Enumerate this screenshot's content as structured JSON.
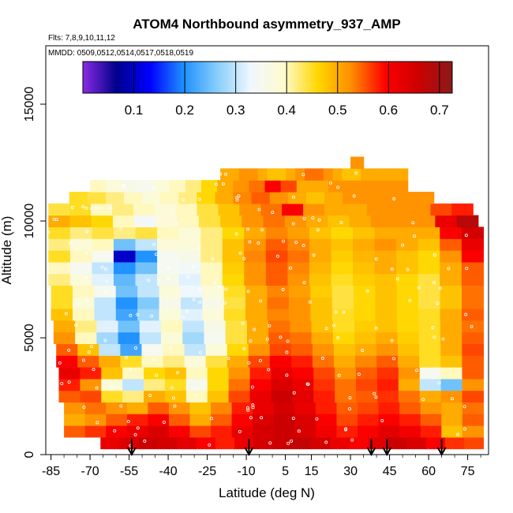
{
  "chart_data": {
    "type": "heatmap",
    "title": "ATOM4 Northbound asymmetry_937_AMP",
    "flights_label": "Flts: 7,8,9,10,11,12",
    "dates_label": "MMDD: 0509,0512,0514,0517,0518,0519",
    "xlabel": "Latitude (deg N)",
    "ylabel": "Altitude (m)",
    "xlim": [
      -87,
      83
    ],
    "ylim": [
      0,
      17500
    ],
    "x_ticks": [
      -85,
      -70,
      -55,
      -40,
      -25,
      -10,
      5,
      15,
      30,
      45,
      60,
      75
    ],
    "y_ticks": [
      0,
      5000,
      10000,
      15000
    ],
    "colorbar": {
      "range": [
        0,
        0.725
      ],
      "ticks": [
        0.1,
        0.2,
        0.3,
        0.4,
        0.5,
        0.6,
        0.7
      ],
      "colors": [
        "#8a2be2",
        "#00008b",
        "#0000ff",
        "#1e90ff",
        "#87cefa",
        "#f0f8ff",
        "#fffacd",
        "#ffd700",
        "#ff8c00",
        "#ff0000",
        "#cd0000",
        "#8b1a1a"
      ]
    },
    "arrow_latitudes": [
      -54,
      -9,
      38,
      44,
      65
    ],
    "altitude_bins": [
      {
        "alt": 500,
        "x0": -66,
        "x1": 81,
        "vals": [
          0.62,
          0.64,
          0.66,
          0.65,
          0.63,
          0.6,
          0.58,
          0.62,
          0.65,
          0.66,
          0.67,
          0.65,
          0.62,
          0.6,
          0.63,
          0.66,
          0.64,
          0.6,
          0.57,
          0.56
        ]
      },
      {
        "alt": 1000,
        "x0": -80,
        "x1": 81,
        "vals": [
          0.55,
          0.57,
          0.6,
          0.62,
          0.64,
          0.6,
          0.56,
          0.58,
          0.62,
          0.65,
          0.66,
          0.64,
          0.61,
          0.58,
          0.6,
          0.63,
          0.61,
          0.58,
          0.48,
          0.52
        ]
      },
      {
        "alt": 1500,
        "x0": -80,
        "x1": 81,
        "vals": [
          0.5,
          0.52,
          0.55,
          0.58,
          0.6,
          0.55,
          0.5,
          0.55,
          0.6,
          0.64,
          0.66,
          0.64,
          0.6,
          0.56,
          0.58,
          0.6,
          0.58,
          0.55,
          0.5,
          0.55
        ]
      },
      {
        "alt": 2000,
        "x0": -80,
        "x1": 81,
        "vals": [
          0.52,
          0.54,
          0.52,
          0.5,
          0.55,
          0.52,
          0.48,
          0.53,
          0.58,
          0.62,
          0.65,
          0.62,
          0.58,
          0.55,
          0.56,
          0.58,
          0.55,
          0.52,
          0.5,
          0.54
        ]
      },
      {
        "alt": 2500,
        "x0": -82,
        "x1": 81,
        "vals": [
          0.55,
          0.56,
          0.45,
          0.42,
          0.5,
          0.48,
          0.4,
          0.48,
          0.56,
          0.62,
          0.66,
          0.63,
          0.58,
          0.54,
          0.55,
          0.57,
          0.54,
          0.5,
          0.52,
          0.56
        ]
      },
      {
        "alt": 3000,
        "x0": -82,
        "x1": 81,
        "vals": [
          0.58,
          0.52,
          0.38,
          0.3,
          0.42,
          0.45,
          0.35,
          0.46,
          0.54,
          0.6,
          0.64,
          0.62,
          0.57,
          0.54,
          0.56,
          0.58,
          0.5,
          0.3,
          0.25,
          0.52
        ]
      },
      {
        "alt": 3500,
        "x0": -82,
        "x1": 81,
        "vals": [
          0.62,
          0.58,
          0.48,
          0.4,
          0.46,
          0.48,
          0.4,
          0.46,
          0.52,
          0.58,
          0.62,
          0.6,
          0.56,
          0.52,
          0.55,
          0.57,
          0.52,
          0.35,
          0.4,
          0.55
        ]
      },
      {
        "alt": 4000,
        "x0": -83,
        "x1": 81,
        "vals": [
          0.6,
          0.55,
          0.5,
          0.45,
          0.4,
          0.42,
          0.38,
          0.44,
          0.5,
          0.56,
          0.6,
          0.58,
          0.54,
          0.5,
          0.53,
          0.55,
          0.5,
          0.45,
          0.48,
          0.55
        ]
      },
      {
        "alt": 4500,
        "x0": -83,
        "x1": 81,
        "vals": [
          0.55,
          0.48,
          0.3,
          0.22,
          0.35,
          0.4,
          0.3,
          0.38,
          0.46,
          0.52,
          0.56,
          0.55,
          0.52,
          0.48,
          0.5,
          0.52,
          0.48,
          0.45,
          0.5,
          0.56
        ]
      },
      {
        "alt": 5000,
        "x0": -84,
        "x1": 81,
        "vals": [
          0.52,
          0.4,
          0.28,
          0.2,
          0.3,
          0.38,
          0.28,
          0.35,
          0.44,
          0.5,
          0.55,
          0.54,
          0.5,
          0.46,
          0.48,
          0.5,
          0.47,
          0.45,
          0.5,
          0.55
        ]
      },
      {
        "alt": 5500,
        "x0": -84,
        "x1": 81,
        "vals": [
          0.5,
          0.42,
          0.32,
          0.25,
          0.32,
          0.4,
          0.3,
          0.36,
          0.44,
          0.5,
          0.54,
          0.52,
          0.48,
          0.45,
          0.47,
          0.48,
          0.46,
          0.45,
          0.5,
          0.54
        ]
      },
      {
        "alt": 6000,
        "x0": -85,
        "x1": 81,
        "vals": [
          0.48,
          0.4,
          0.3,
          0.22,
          0.28,
          0.38,
          0.32,
          0.38,
          0.45,
          0.5,
          0.53,
          0.52,
          0.48,
          0.45,
          0.46,
          0.48,
          0.46,
          0.45,
          0.5,
          0.55
        ]
      },
      {
        "alt": 6500,
        "x0": -85,
        "x1": 81,
        "vals": [
          0.45,
          0.38,
          0.3,
          0.2,
          0.26,
          0.36,
          0.3,
          0.36,
          0.44,
          0.5,
          0.54,
          0.52,
          0.48,
          0.44,
          0.46,
          0.48,
          0.46,
          0.44,
          0.48,
          0.54
        ]
      },
      {
        "alt": 7000,
        "x0": -85,
        "x1": 81,
        "vals": [
          0.45,
          0.4,
          0.35,
          0.25,
          0.3,
          0.38,
          0.33,
          0.38,
          0.45,
          0.5,
          0.53,
          0.51,
          0.47,
          0.44,
          0.46,
          0.48,
          0.46,
          0.44,
          0.48,
          0.54
        ]
      },
      {
        "alt": 7500,
        "x0": -86,
        "x1": 81,
        "vals": [
          0.42,
          0.38,
          0.32,
          0.24,
          0.3,
          0.36,
          0.32,
          0.4,
          0.46,
          0.52,
          0.55,
          0.52,
          0.48,
          0.45,
          0.47,
          0.48,
          0.46,
          0.44,
          0.5,
          0.55
        ]
      },
      {
        "alt": 8000,
        "x0": -86,
        "x1": 81,
        "vals": [
          0.4,
          0.35,
          0.3,
          0.2,
          0.25,
          0.35,
          0.34,
          0.4,
          0.47,
          0.52,
          0.55,
          0.53,
          0.49,
          0.46,
          0.48,
          0.5,
          0.48,
          0.46,
          0.5,
          0.55
        ]
      },
      {
        "alt": 8500,
        "x0": -86,
        "x1": 81,
        "vals": [
          0.45,
          0.4,
          0.35,
          0.1,
          0.2,
          0.35,
          0.36,
          0.42,
          0.48,
          0.53,
          0.56,
          0.54,
          0.5,
          0.47,
          0.49,
          0.5,
          0.48,
          0.46,
          0.52,
          0.6
        ]
      },
      {
        "alt": 9000,
        "x0": -86,
        "x1": 81,
        "vals": [
          0.42,
          0.38,
          0.4,
          0.25,
          0.3,
          0.38,
          0.38,
          0.42,
          0.48,
          0.52,
          0.55,
          0.53,
          0.5,
          0.48,
          0.5,
          0.52,
          0.5,
          0.48,
          0.55,
          0.62
        ]
      },
      {
        "alt": 9500,
        "x0": -86,
        "x1": 81,
        "vals": [
          0.45,
          0.42,
          0.44,
          0.42,
          0.44,
          0.4,
          0.38,
          0.42,
          0.46,
          0.5,
          0.53,
          0.51,
          0.48,
          0.46,
          0.48,
          0.5,
          0.5,
          0.5,
          0.6,
          0.65
        ]
      },
      {
        "alt": 10000,
        "x0": -86,
        "x1": 79,
        "vals": [
          0.5,
          0.48,
          0.46,
          0.4,
          0.34,
          0.38,
          0.4,
          0.44,
          0.48,
          0.52,
          0.54,
          0.52,
          0.5,
          0.48,
          0.5,
          0.52,
          0.52,
          0.52,
          0.62,
          0.68
        ]
      },
      {
        "alt": 10500,
        "x0": -86,
        "x1": 77,
        "vals": [
          0.44,
          0.45,
          0.4,
          0.42,
          0.4,
          0.38,
          0.4,
          0.44,
          0.48,
          0.52,
          0.54,
          0.6,
          0.52,
          0.5,
          0.5,
          0.52,
          0.52,
          0.52,
          0.56,
          0.58
        ]
      },
      {
        "alt": 11000,
        "x0": -78,
        "x1": 62,
        "vals": [
          0.45,
          0.44,
          0.42,
          0.4,
          0.38,
          0.4,
          0.42,
          0.46,
          0.5,
          0.53,
          0.55,
          0.52,
          0.5,
          0.48,
          0.5,
          0.52,
          0.52,
          0.52,
          0.52,
          0.52
        ]
      },
      {
        "alt": 11500,
        "x0": -70,
        "x1": 52,
        "vals": [
          0.4,
          0.38,
          0.36,
          0.35,
          0.38,
          0.4,
          0.42,
          0.46,
          0.5,
          0.52,
          0.54,
          0.6,
          0.56,
          0.5,
          0.5,
          0.52,
          0.52,
          0.52,
          0.52,
          0.52
        ]
      },
      {
        "alt": 12000,
        "x0": -20,
        "x1": 52,
        "vals": [
          0.5,
          0.5,
          0.52,
          0.52,
          0.5,
          0.48,
          0.48,
          0.5,
          0.52,
          0.54,
          0.54,
          0.52,
          0.5,
          0.48,
          0.48,
          0.5,
          0.5,
          0.5,
          0.5,
          0.5
        ]
      },
      {
        "alt": 12500,
        "x0": 30,
        "x1": 35,
        "vals": [
          0.52,
          0.52,
          0.52,
          0.52,
          0.52,
          0.52,
          0.52,
          0.52,
          0.52,
          0.52,
          0.52,
          0.52,
          0.52,
          0.52,
          0.52,
          0.52,
          0.52,
          0.52,
          0.52,
          0.52
        ]
      }
    ]
  }
}
